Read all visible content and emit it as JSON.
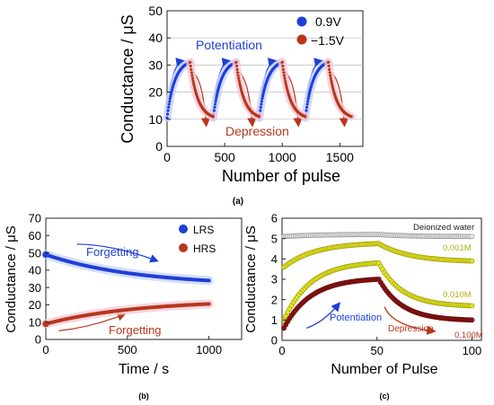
{
  "captions": {
    "a": "(a)",
    "b": "(b)",
    "c": "(c)"
  },
  "chart_data": [
    {
      "panel": "a",
      "type": "scatter",
      "xlabel": "Number of pulse",
      "ylabel": "Conductance / μS",
      "xlim": [
        0,
        1700
      ],
      "ylim": [
        0,
        50
      ],
      "xticks": [
        0,
        500,
        1000,
        1500
      ],
      "yticks": [
        0,
        10,
        20,
        30,
        40,
        50
      ],
      "legend_position": "top-right",
      "series": [
        {
          "name": "0.9V",
          "color": "#1f3fd6",
          "segments": [
            {
              "x0": 0,
              "x1": 200,
              "y0": 10.5,
              "y1": 31,
              "k": 3
            },
            {
              "x0": 400,
              "x1": 600,
              "y0": 10.5,
              "y1": 31,
              "k": 3
            },
            {
              "x0": 800,
              "x1": 1000,
              "y0": 10.5,
              "y1": 31,
              "k": 3
            },
            {
              "x0": 1200,
              "x1": 1400,
              "y0": 10.5,
              "y1": 31,
              "k": 3
            }
          ]
        },
        {
          "name": "−1.5V",
          "color": "#b8371c",
          "segments": [
            {
              "x0": 200,
              "x1": 400,
              "y0": 31,
              "y1": 11,
              "k": 3
            },
            {
              "x0": 600,
              "x1": 800,
              "y0": 31,
              "y1": 11,
              "k": 3
            },
            {
              "x0": 1000,
              "x1": 1200,
              "y0": 31,
              "y1": 11,
              "k": 3
            },
            {
              "x0": 1400,
              "x1": 1600,
              "y0": 31,
              "y1": 11,
              "k": 3
            }
          ]
        }
      ],
      "annotations": [
        {
          "text": "Potentiation",
          "color": "#1f3fd6"
        },
        {
          "text": "Depression",
          "color": "#b8371c"
        }
      ]
    },
    {
      "panel": "b",
      "type": "scatter",
      "xlabel": "Time / s",
      "ylabel": "Conductance / μS",
      "xlim": [
        0,
        1200
      ],
      "ylim": [
        0,
        70
      ],
      "xticks": [
        0,
        500,
        1000
      ],
      "yticks": [
        0,
        10,
        20,
        30,
        40,
        50,
        60,
        70
      ],
      "legend_position": "top-right",
      "series": [
        {
          "name": "LRS",
          "color": "#1f3fd6",
          "x0": 0,
          "x1": 1000,
          "y0": 49,
          "y1": 34,
          "k": 1.8
        },
        {
          "name": "HRS",
          "color": "#b8371c",
          "x0": 0,
          "x1": 1000,
          "y0": 9,
          "y1": 20.5,
          "k": 1.8
        }
      ],
      "annotations": [
        {
          "text": "Forgetting",
          "color": "#1f3fd6"
        },
        {
          "text": "Forgetting",
          "color": "#b8371c"
        }
      ]
    },
    {
      "panel": "c",
      "type": "scatter",
      "xlabel": "Number of Pulse",
      "ylabel": "Conductance / μS",
      "xlim": [
        0,
        105
      ],
      "ylim": [
        0,
        6
      ],
      "xticks": [
        0,
        50,
        100
      ],
      "yticks": [
        0,
        1,
        2,
        3,
        4,
        5,
        6
      ],
      "series": [
        {
          "name": "Deionized water",
          "color": "#e8e8e8",
          "edge": "#8a8a8a",
          "pot": {
            "y0": 5.1,
            "y1": 5.2,
            "k": 3
          },
          "dep": {
            "y0": 5.2,
            "y1": 5.1,
            "k": 3
          }
        },
        {
          "name": "0.001M",
          "color": "#e6e61a",
          "edge": "#8f8f10",
          "pot": {
            "y0": 3.6,
            "y1": 4.75,
            "k": 3
          },
          "dep": {
            "y0": 4.75,
            "y1": 3.9,
            "k": 3
          }
        },
        {
          "name": "0.010M",
          "color": "#e6e61a",
          "edge": "#8f8f10",
          "pot": {
            "y0": 1.0,
            "y1": 3.8,
            "k": 3.5
          },
          "dep": {
            "y0": 3.8,
            "y1": 1.7,
            "k": 4
          }
        },
        {
          "name": "0.100M",
          "color": "#8a1212",
          "edge": "#5a0a0a",
          "pot": {
            "y0": 0.6,
            "y1": 3.0,
            "k": 3.5
          },
          "dep": {
            "y0": 3.0,
            "y1": 1.0,
            "k": 4
          }
        }
      ],
      "annotations": [
        {
          "text": "Potentiation",
          "color": "#1f3fd6"
        },
        {
          "text": "Depression",
          "color": "#b8371c"
        }
      ]
    }
  ]
}
